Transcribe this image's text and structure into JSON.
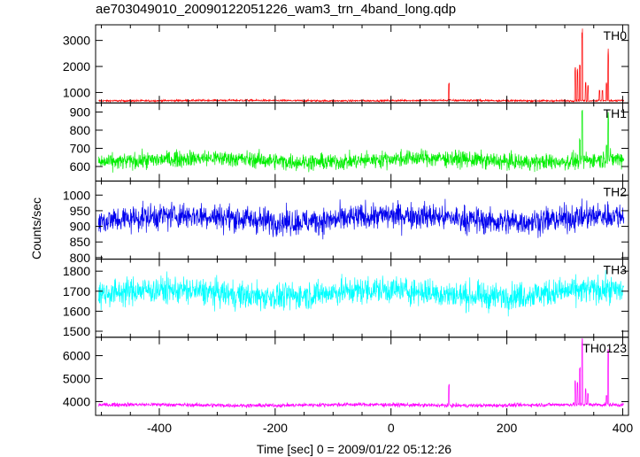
{
  "chart_data": {
    "type": "line",
    "title": "ae703049010_20090122051226_wam3_trn_4band_long.qdp",
    "xlabel": "Time [sec] 0 = 2009/01/22 05:12:26",
    "ylabel": "Counts/sec",
    "xlim": [
      -510,
      410
    ],
    "x_ticks": [
      -400,
      -200,
      0,
      200,
      400
    ],
    "grid": false,
    "panels": [
      {
        "name": "TH0",
        "color": "#ff0000",
        "ylim": [
          600,
          3600
        ],
        "y_ticks": [
          1000,
          2000,
          3000
        ],
        "baseline": 690,
        "noise": 25,
        "features": [
          {
            "x": 100,
            "y": 1400
          },
          {
            "x": 318,
            "y": 2000
          },
          {
            "x": 322,
            "y": 1900
          },
          {
            "x": 326,
            "y": 2100
          },
          {
            "x": 330,
            "y": 3500
          },
          {
            "x": 336,
            "y": 1400
          },
          {
            "x": 340,
            "y": 1300
          },
          {
            "x": 360,
            "y": 1100
          },
          {
            "x": 365,
            "y": 1100
          },
          {
            "x": 372,
            "y": 1400
          },
          {
            "x": 375,
            "y": 2700
          }
        ]
      },
      {
        "name": "TH1",
        "color": "#00ee00",
        "ylim": [
          520,
          950
        ],
        "y_ticks": [
          600,
          700,
          800,
          900
        ],
        "baseline": 635,
        "noise": 32,
        "features": [
          {
            "x": 330,
            "y": 950
          },
          {
            "x": 326,
            "y": 760
          },
          {
            "x": 375,
            "y": 900
          },
          {
            "x": 372,
            "y": 720
          }
        ]
      },
      {
        "name": "TH2",
        "color": "#0000ee",
        "ylim": [
          795,
          1045
        ],
        "y_ticks": [
          800,
          850,
          900,
          950,
          1000
        ],
        "baseline": 925,
        "noise": 30,
        "features": []
      },
      {
        "name": "TH3",
        "color": "#00ffff",
        "ylim": [
          1470,
          1860
        ],
        "y_ticks": [
          1500,
          1600,
          1700,
          1800
        ],
        "baseline": 1690,
        "noise": 48,
        "features": []
      },
      {
        "name": "TH0123",
        "color": "#ff00ff",
        "ylim": [
          3400,
          6800
        ],
        "y_ticks": [
          4000,
          5000,
          6000
        ],
        "baseline": 3850,
        "noise": 60,
        "features": [
          {
            "x": 100,
            "y": 4800
          },
          {
            "x": 318,
            "y": 5000
          },
          {
            "x": 322,
            "y": 4900
          },
          {
            "x": 326,
            "y": 5500
          },
          {
            "x": 330,
            "y": 6800
          },
          {
            "x": 336,
            "y": 4600
          },
          {
            "x": 340,
            "y": 4400
          },
          {
            "x": 372,
            "y": 4300
          },
          {
            "x": 375,
            "y": 6300
          }
        ]
      }
    ]
  }
}
